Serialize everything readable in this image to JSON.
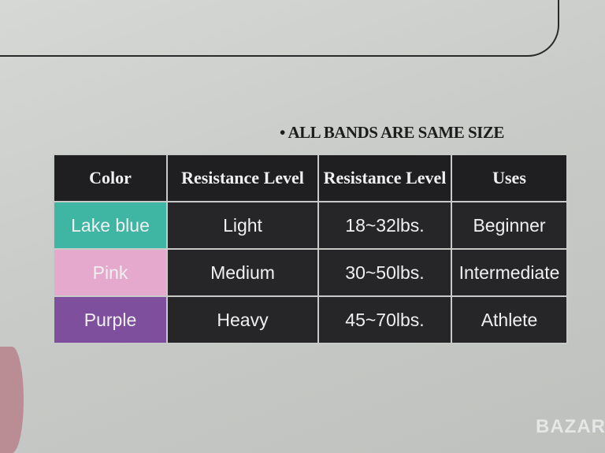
{
  "notice": "• ALL BANDS ARE SAME SIZE",
  "table": {
    "headers": [
      "Color",
      "Resistance Level",
      "Resistance Level",
      "Uses"
    ],
    "rows": [
      {
        "color": "Lake blue",
        "swatch": "#3fb5a4",
        "level": "Light",
        "range": "18~32lbs.",
        "use": "Beginner"
      },
      {
        "color": "Pink",
        "swatch": "#e4a9cc",
        "level": "Medium",
        "range": "30~50lbs.",
        "use": "Intermediate"
      },
      {
        "color": "Purple",
        "swatch": "#7e4f9c",
        "level": "Heavy",
        "range": "45~70lbs.",
        "use": "Athlete"
      }
    ]
  },
  "watermark": "BAZAR"
}
